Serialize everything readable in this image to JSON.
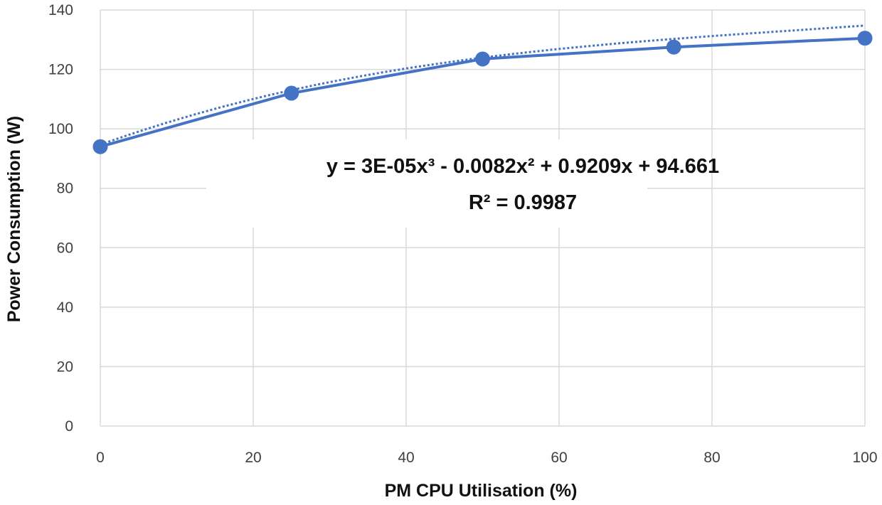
{
  "chart_data": {
    "type": "line",
    "xlabel": "PM CPU Utilisation (%)",
    "ylabel": "Power Consumption (W)",
    "xlim": [
      0,
      100
    ],
    "ylim": [
      0,
      140
    ],
    "x_ticks": [
      0,
      20,
      40,
      60,
      80,
      100
    ],
    "y_ticks": [
      0,
      20,
      40,
      60,
      80,
      100,
      120,
      140
    ],
    "grid": true,
    "series": [
      {
        "x": [
          0,
          25,
          50,
          75,
          100
        ],
        "y": [
          94,
          112,
          123.5,
          127.5,
          130.5
        ],
        "color": "#4472c4",
        "marker": "circle"
      }
    ],
    "trendline": {
      "type": "polynomial",
      "order": 3,
      "coefficients": [
        3e-05,
        -0.0082,
        0.9209,
        94.661
      ],
      "style": "dotted",
      "color": "#4472c4"
    },
    "annotations": {
      "equation": "y = 3E-05x³ - 0.0082x² + 0.9209x + 94.661",
      "r_squared": "R² = 0.9987"
    }
  }
}
